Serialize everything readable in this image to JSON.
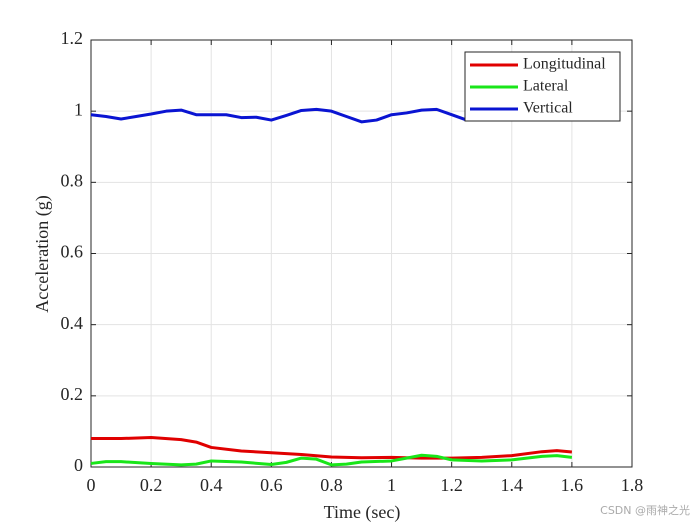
{
  "chart_data": {
    "type": "line",
    "xlabel": "Time (sec)",
    "ylabel": "Acceleration (g)",
    "xlim": [
      0,
      1.8
    ],
    "xticks": [
      0,
      0.2,
      0.4,
      0.6,
      0.8,
      1,
      1.2,
      1.4,
      1.6,
      1.8
    ],
    "ylim": [
      0,
      1.2
    ],
    "yticks": [
      0,
      0.2,
      0.4,
      0.6,
      0.8,
      1,
      1.2
    ],
    "grid": true,
    "legend_position": "northeast",
    "series": [
      {
        "name": "Longitudinal",
        "color": "#e00000",
        "x": [
          0,
          0.1,
          0.2,
          0.3,
          0.35,
          0.4,
          0.5,
          0.6,
          0.7,
          0.8,
          0.9,
          1,
          1.1,
          1.2,
          1.3,
          1.4,
          1.5,
          1.55,
          1.6
        ],
        "values": [
          0.08,
          0.08,
          0.083,
          0.077,
          0.07,
          0.055,
          0.045,
          0.04,
          0.035,
          0.028,
          0.026,
          0.027,
          0.025,
          0.025,
          0.027,
          0.032,
          0.043,
          0.046,
          0.042
        ]
      },
      {
        "name": "Lateral",
        "color": "#19e619",
        "x": [
          0,
          0.05,
          0.1,
          0.2,
          0.3,
          0.35,
          0.4,
          0.5,
          0.6,
          0.65,
          0.7,
          0.75,
          0.8,
          0.85,
          0.9,
          1,
          1.05,
          1.1,
          1.15,
          1.2,
          1.3,
          1.4,
          1.5,
          1.55,
          1.6
        ],
        "values": [
          0.01,
          0.015,
          0.015,
          0.01,
          0.006,
          0.008,
          0.017,
          0.014,
          0.007,
          0.013,
          0.025,
          0.022,
          0.006,
          0.008,
          0.014,
          0.017,
          0.025,
          0.033,
          0.03,
          0.02,
          0.017,
          0.02,
          0.03,
          0.032,
          0.027
        ]
      },
      {
        "name": "Vertical",
        "color": "#0a14d2",
        "x": [
          0,
          0.05,
          0.1,
          0.15,
          0.2,
          0.25,
          0.3,
          0.35,
          0.4,
          0.45,
          0.5,
          0.55,
          0.6,
          0.65,
          0.7,
          0.75,
          0.8,
          0.85,
          0.9,
          0.95,
          1,
          1.05,
          1.1,
          1.15,
          1.2,
          1.25
        ],
        "values": [
          0.99,
          0.985,
          0.978,
          0.985,
          0.992,
          1.0,
          1.003,
          0.99,
          0.99,
          0.99,
          0.982,
          0.983,
          0.975,
          0.988,
          1.002,
          1.005,
          1.0,
          0.985,
          0.97,
          0.975,
          0.99,
          0.995,
          1.003,
          1.005,
          0.99,
          0.975
        ]
      }
    ]
  },
  "watermark": "CSDN @雨神之光"
}
